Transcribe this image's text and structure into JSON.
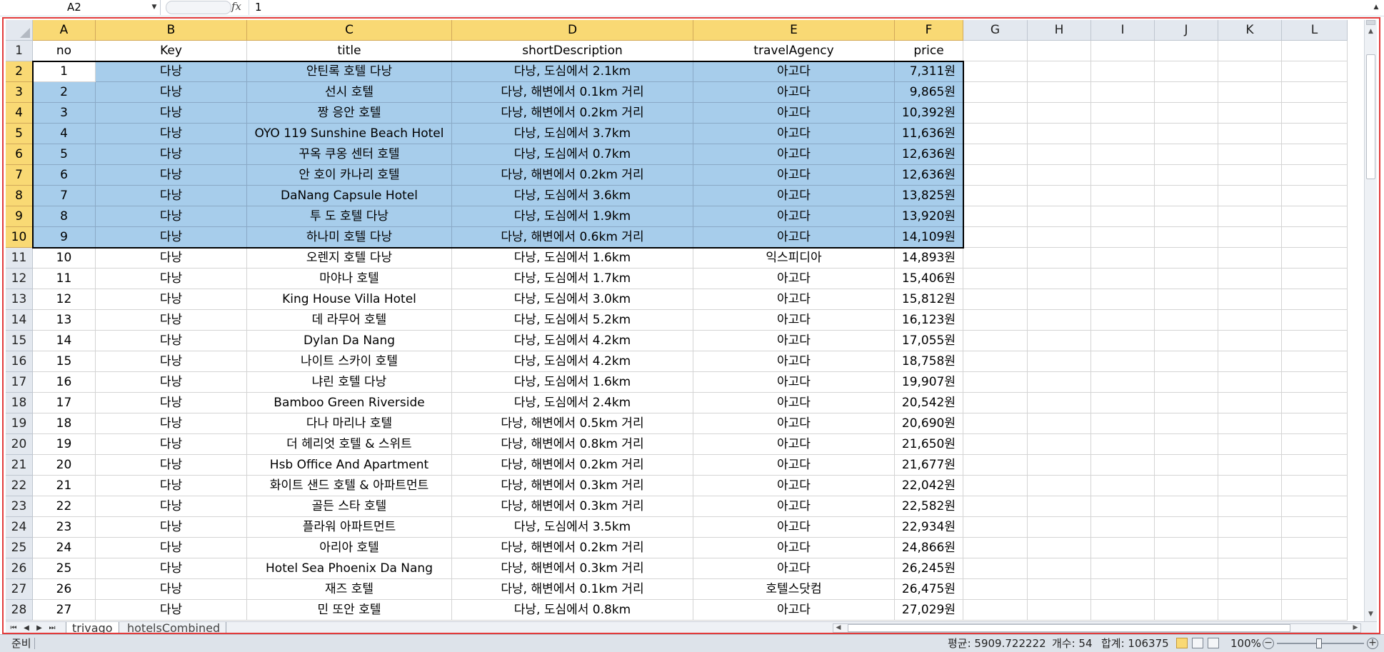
{
  "formula_bar": {
    "name_box": "A2",
    "fx_label": "fx",
    "formula_value": "1"
  },
  "columns": [
    "A",
    "B",
    "C",
    "D",
    "E",
    "F",
    "G",
    "H",
    "I",
    "J",
    "K",
    "L"
  ],
  "header_row": [
    "no",
    "Key",
    "title",
    "shortDescription",
    "travelAgency",
    "price"
  ],
  "rows": [
    {
      "r": "2",
      "cells": [
        "1",
        "다낭",
        "안틴록 호텔 다낭",
        "다낭, 도심에서 2.1km",
        "아고다",
        "7,311원"
      ]
    },
    {
      "r": "3",
      "cells": [
        "2",
        "다낭",
        "선시 호텔",
        "다낭, 해변에서 0.1km 거리",
        "아고다",
        "9,865원"
      ]
    },
    {
      "r": "4",
      "cells": [
        "3",
        "다낭",
        "짱 응안 호텔",
        "다낭, 해변에서 0.2km 거리",
        "아고다",
        "10,392원"
      ]
    },
    {
      "r": "5",
      "cells": [
        "4",
        "다낭",
        "OYO 119 Sunshine Beach Hotel",
        "다낭, 도심에서 3.7km",
        "아고다",
        "11,636원"
      ]
    },
    {
      "r": "6",
      "cells": [
        "5",
        "다낭",
        "꾸옥 쿠옹 센터 호텔",
        "다낭, 도심에서 0.7km",
        "아고다",
        "12,636원"
      ]
    },
    {
      "r": "7",
      "cells": [
        "6",
        "다낭",
        "안 호이 카나리 호텔",
        "다낭, 해변에서 0.2km 거리",
        "아고다",
        "12,636원"
      ]
    },
    {
      "r": "8",
      "cells": [
        "7",
        "다낭",
        "DaNang Capsule Hotel",
        "다낭, 도심에서 3.6km",
        "아고다",
        "13,825원"
      ]
    },
    {
      "r": "9",
      "cells": [
        "8",
        "다낭",
        "투 도 호텔 다낭",
        "다낭, 도심에서 1.9km",
        "아고다",
        "13,920원"
      ]
    },
    {
      "r": "10",
      "cells": [
        "9",
        "다낭",
        "하나미 호텔 다낭",
        "다낭, 해변에서 0.6km 거리",
        "아고다",
        "14,109원"
      ]
    },
    {
      "r": "11",
      "cells": [
        "10",
        "다낭",
        "오렌지 호텔 다낭",
        "다낭, 도심에서 1.6km",
        "익스피디아",
        "14,893원"
      ]
    },
    {
      "r": "12",
      "cells": [
        "11",
        "다낭",
        "마야나 호텔",
        "다낭, 도심에서 1.7km",
        "아고다",
        "15,406원"
      ]
    },
    {
      "r": "13",
      "cells": [
        "12",
        "다낭",
        "King House Villa Hotel",
        "다낭, 도심에서 3.0km",
        "아고다",
        "15,812원"
      ]
    },
    {
      "r": "14",
      "cells": [
        "13",
        "다낭",
        "데 라무어 호텔",
        "다낭, 도심에서 5.2km",
        "아고다",
        "16,123원"
      ]
    },
    {
      "r": "15",
      "cells": [
        "14",
        "다낭",
        "Dylan Da Nang",
        "다낭, 도심에서 4.2km",
        "아고다",
        "17,055원"
      ]
    },
    {
      "r": "16",
      "cells": [
        "15",
        "다낭",
        "나이트 스카이 호텔",
        "다낭, 도심에서 4.2km",
        "아고다",
        "18,758원"
      ]
    },
    {
      "r": "17",
      "cells": [
        "16",
        "다낭",
        "냐린 호텔 다낭",
        "다낭, 도심에서 1.6km",
        "아고다",
        "19,907원"
      ]
    },
    {
      "r": "18",
      "cells": [
        "17",
        "다낭",
        "Bamboo Green Riverside",
        "다낭, 도심에서 2.4km",
        "아고다",
        "20,542원"
      ]
    },
    {
      "r": "19",
      "cells": [
        "18",
        "다낭",
        "다나 마리나 호텔",
        "다낭, 해변에서 0.5km 거리",
        "아고다",
        "20,690원"
      ]
    },
    {
      "r": "20",
      "cells": [
        "19",
        "다낭",
        "더 헤리엇 호텔 & 스위트",
        "다낭, 해변에서 0.8km 거리",
        "아고다",
        "21,650원"
      ]
    },
    {
      "r": "21",
      "cells": [
        "20",
        "다낭",
        "Hsb Office And Apartment",
        "다낭, 해변에서 0.2km 거리",
        "아고다",
        "21,677원"
      ]
    },
    {
      "r": "22",
      "cells": [
        "21",
        "다낭",
        "화이트 샌드 호텔 & 아파트먼트",
        "다낭, 해변에서 0.3km 거리",
        "아고다",
        "22,042원"
      ]
    },
    {
      "r": "23",
      "cells": [
        "22",
        "다낭",
        "골든 스타 호텔",
        "다낭, 해변에서 0.3km 거리",
        "아고다",
        "22,582원"
      ]
    },
    {
      "r": "24",
      "cells": [
        "23",
        "다낭",
        "플라워 아파트먼트",
        "다낭, 도심에서 3.5km",
        "아고다",
        "22,934원"
      ]
    },
    {
      "r": "25",
      "cells": [
        "24",
        "다낭",
        "아리아 호텔",
        "다낭, 해변에서 0.2km 거리",
        "아고다",
        "24,866원"
      ]
    },
    {
      "r": "26",
      "cells": [
        "25",
        "다낭",
        "Hotel Sea Phoenix Da Nang",
        "다낭, 해변에서 0.3km 거리",
        "아고다",
        "26,245원"
      ]
    },
    {
      "r": "27",
      "cells": [
        "26",
        "다낭",
        "재즈 호텔",
        "다낭, 해변에서 0.1km 거리",
        "호텔스닷컴",
        "26,475원"
      ]
    },
    {
      "r": "28",
      "cells": [
        "27",
        "다낭",
        "민 또안 호텔",
        "다낭, 도심에서 0.8km",
        "아고다",
        "27,029원"
      ]
    }
  ],
  "sheet_tabs": [
    "trivago",
    "hotelsCombined"
  ],
  "active_tab": "trivago",
  "status": {
    "ready": "준비",
    "average": "평균: 5909.722222",
    "count": "개수: 54",
    "sum": "합계: 106375",
    "zoom": "100%"
  },
  "colors": {
    "selection_fill": "#a7cdeb",
    "selected_header": "#f9d974",
    "frame_highlight": "#e23b3b"
  }
}
